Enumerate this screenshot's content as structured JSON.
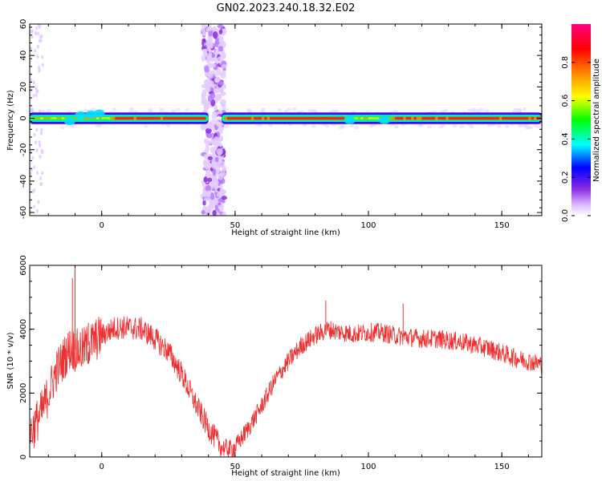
{
  "title": "GN02.2023.240.18.32.E02",
  "colors": {
    "snr_line": "#f03030",
    "colormap": [
      "#ffffff",
      "#d9b3ff",
      "#8a2be2",
      "#0000ff",
      "#00ffff",
      "#00ff00",
      "#ffff00",
      "#ff8000",
      "#ff0000",
      "#ff0080"
    ]
  },
  "chart_data": [
    {
      "type": "heatmap",
      "xlabel": "Height of straight line (km)",
      "ylabel": "Frequency (Hz)",
      "xlim": [
        -27,
        165
      ],
      "ylim": [
        -62,
        60
      ],
      "x_ticks": [
        0,
        50,
        100,
        150
      ],
      "y_ticks": [
        -60,
        -40,
        -20,
        0,
        20,
        40,
        60
      ],
      "grid": false,
      "band": {
        "center_hz": 0,
        "halfwidth_hz": 3,
        "x_start": -27,
        "x_end": 165,
        "gaps_km": [
          [
            40,
            45
          ]
        ],
        "low_amplitude_segments_km": [
          [
            -27,
            3
          ],
          [
            92,
            108
          ]
        ]
      },
      "broadband_column": {
        "x_km": [
          38,
          46
        ],
        "freq_hz": [
          -62,
          60
        ],
        "amplitude": 0.3
      },
      "scattered_noise_km": [
        -27,
        -22
      ],
      "colorbar": {
        "label": "Normalized spectral amplitude",
        "range": [
          0,
          1
        ],
        "ticks": [
          "0.0",
          "0.2",
          "0.4",
          "0.6",
          "0.8"
        ]
      }
    },
    {
      "type": "line",
      "xlabel": "Height of straight line (km)",
      "ylabel": "SNR (10 * v/v)",
      "xlim": [
        -27,
        165
      ],
      "ylim": [
        0,
        6000
      ],
      "x_ticks": [
        0,
        50,
        100,
        150
      ],
      "y_ticks": [
        0,
        2000,
        4000,
        6000
      ],
      "grid": false,
      "series": [
        {
          "x": [
            -27,
            -22,
            -17,
            -12,
            -8,
            -5,
            0,
            5,
            10,
            15,
            20,
            25,
            30,
            35,
            40,
            45,
            48,
            50,
            55,
            60,
            65,
            70,
            75,
            80,
            85,
            90,
            95,
            100,
            105,
            110,
            115,
            120,
            125,
            130,
            135,
            140,
            145,
            150,
            155,
            160,
            165
          ],
          "values": [
            700,
            1500,
            2700,
            3400,
            3300,
            3500,
            3800,
            4050,
            4050,
            4000,
            3700,
            3300,
            2600,
            1700,
            900,
            300,
            250,
            300,
            900,
            1600,
            2400,
            3000,
            3500,
            3800,
            4000,
            3900,
            3850,
            3900,
            3900,
            3800,
            3750,
            3700,
            3700,
            3650,
            3600,
            3500,
            3400,
            3250,
            3100,
            3000,
            2900
          ]
        }
      ],
      "peaks": [
        [
          -11,
          5600
        ],
        [
          -10,
          6000
        ],
        [
          -8,
          3900
        ],
        [
          -5,
          4200
        ],
        [
          84,
          4900
        ],
        [
          113,
          4800
        ]
      ]
    }
  ]
}
